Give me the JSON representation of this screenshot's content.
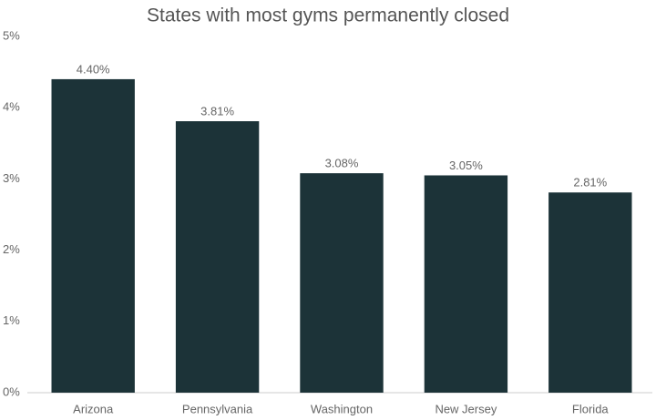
{
  "chart_data": {
    "type": "bar",
    "title": "States with most gyms permanently closed",
    "categories": [
      "Arizona",
      "Pennsylvania",
      "Washington",
      "New Jersey",
      "Florida"
    ],
    "values": [
      4.4,
      3.81,
      3.08,
      3.05,
      2.81
    ],
    "value_labels": [
      "4.40%",
      "3.81%",
      "3.08%",
      "3.05%",
      "2.81%"
    ],
    "color": "#1c3338",
    "ylim": [
      0,
      5
    ],
    "yticks": [
      {
        "value": 0,
        "label": "0%"
      },
      {
        "value": 1,
        "label": "1%"
      },
      {
        "value": 2,
        "label": "2%"
      },
      {
        "value": 3,
        "label": "3%"
      },
      {
        "value": 4,
        "label": "4%"
      },
      {
        "value": 5,
        "label": "5%"
      }
    ],
    "grid": false
  }
}
